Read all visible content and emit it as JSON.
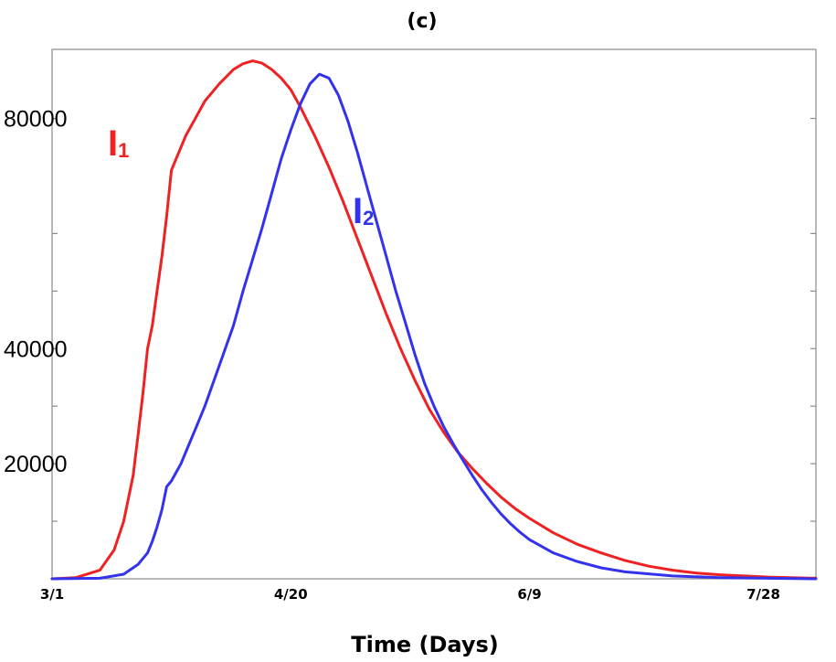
{
  "chart_data": {
    "type": "line",
    "title": "(c)",
    "xlabel": "Time (Days)",
    "ylabel": "",
    "xlim": [
      0,
      160
    ],
    "ylim": [
      0,
      92000
    ],
    "x_ticks": [
      {
        "value": 0,
        "label": "3/1"
      },
      {
        "value": 50,
        "label": "4/20"
      },
      {
        "value": 100,
        "label": "6/9"
      },
      {
        "value": 149,
        "label": "7/28"
      }
    ],
    "y_ticks": [
      {
        "value": 10000,
        "label": ""
      },
      {
        "value": 20000,
        "label": "20000"
      },
      {
        "value": 30000,
        "label": ""
      },
      {
        "value": 40000,
        "label": "40000"
      },
      {
        "value": 50000,
        "label": ""
      },
      {
        "value": 60000,
        "label": ""
      },
      {
        "value": 80000,
        "label": "80000"
      }
    ],
    "grid": false,
    "series": [
      {
        "name": "I1",
        "label_main": "I",
        "label_sub": "1",
        "color": "#ee2222",
        "x": [
          0,
          5,
          10,
          13,
          15,
          17,
          18,
          19,
          20,
          21,
          22,
          23,
          24,
          25,
          26,
          27,
          28,
          30,
          32,
          35,
          38,
          40,
          42,
          44,
          46,
          48,
          50,
          52,
          55,
          58,
          61,
          64,
          67,
          70,
          73,
          76,
          79,
          82,
          85,
          88,
          91,
          94,
          97,
          100,
          105,
          110,
          115,
          120,
          125,
          130,
          135,
          140,
          150,
          160
        ],
        "y": [
          0,
          200,
          1500,
          5000,
          10000,
          18000,
          25000,
          32000,
          40000,
          44000,
          50000,
          56000,
          63000,
          71000,
          73000,
          75000,
          77000,
          80000,
          83000,
          86000,
          88500,
          89500,
          90000,
          89600,
          88500,
          87000,
          85000,
          82000,
          77000,
          71500,
          65500,
          59000,
          52500,
          46000,
          40000,
          34500,
          29500,
          25500,
          22000,
          19200,
          16600,
          14200,
          12200,
          10500,
          8000,
          6000,
          4500,
          3200,
          2200,
          1500,
          1000,
          700,
          300,
          100
        ]
      },
      {
        "name": "I2",
        "label_main": "I",
        "label_sub": "2",
        "color": "#3333ee",
        "x": [
          0,
          10,
          15,
          18,
          20,
          21,
          22,
          23,
          24,
          25,
          26,
          27,
          28,
          30,
          32,
          35,
          38,
          40,
          42,
          44,
          46,
          48,
          50,
          52,
          54,
          56,
          58,
          60,
          62,
          64,
          66,
          68,
          70,
          72,
          74,
          76,
          78,
          80,
          82,
          84,
          86,
          88,
          90,
          92,
          94,
          96,
          98,
          100,
          105,
          110,
          115,
          120,
          130,
          140,
          150,
          160
        ],
        "y": [
          0,
          100,
          800,
          2500,
          4500,
          6500,
          9000,
          12000,
          16000,
          17000,
          18500,
          20000,
          22000,
          26000,
          30000,
          37000,
          44000,
          50000,
          55500,
          61000,
          67000,
          73000,
          78000,
          82500,
          86000,
          87700,
          87000,
          84000,
          79500,
          74000,
          68000,
          62000,
          56000,
          50000,
          44500,
          39000,
          34000,
          30000,
          26500,
          23500,
          20700,
          18000,
          15500,
          13300,
          11300,
          9600,
          8100,
          6800,
          4500,
          3000,
          1900,
          1200,
          500,
          200,
          100,
          0
        ]
      }
    ]
  }
}
